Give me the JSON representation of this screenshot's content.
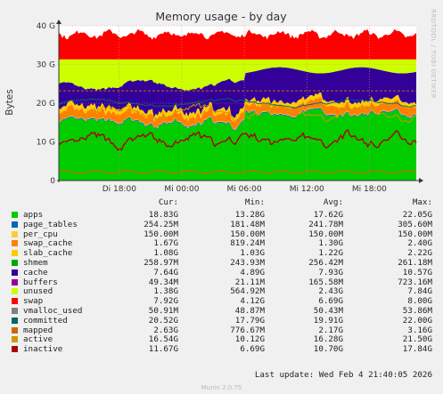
{
  "chart_data": {
    "type": "area",
    "title": "Memory usage - by day",
    "ylabel": "Bytes",
    "watermark": "RRDTOOL / TOBI OETIKER",
    "ylim": [
      0,
      40
    ],
    "yticks": [
      "0",
      "10 G",
      "20 G",
      "30 G",
      "40 G"
    ],
    "xticks": [
      "Di 18:00",
      "Mi 00:00",
      "Mi 06:00",
      "Mi 12:00",
      "Mi 18:00"
    ],
    "x_hours": [
      12,
      18,
      24,
      30,
      36,
      42,
      46.5
    ],
    "xlim_hours": [
      12.2,
      46.5
    ],
    "grid": true,
    "stacked": true,
    "series_colors": {
      "apps": "#00cc00",
      "page_tables": "#0066b3",
      "per_cpu": "#ff8000",
      "swap_cache": "#ffcc00",
      "slab_cache": "#330099",
      "cache": "#990099",
      "buffers": "#ccff00",
      "unused": "#ff0000",
      "vmalloc_used": "#8fb68f",
      "committed": "#1e4d6e",
      "mapped": "#b35a00",
      "active": "#c8a000",
      "inactive": "#b30000"
    },
    "headers": {
      "cur": "Cur:",
      "min": "Min:",
      "avg": "Avg:",
      "max": "Max:"
    },
    "legend": [
      {
        "name": "apps",
        "color": "#00cc00",
        "cur": "18.83G",
        "min": "13.28G",
        "avg": "17.62G",
        "max": "22.05G"
      },
      {
        "name": "page_tables",
        "color": "#0066b3",
        "cur": "254.25M",
        "min": "181.48M",
        "avg": "241.78M",
        "max": "305.60M"
      },
      {
        "name": "per_cpu",
        "color": "#ff8000",
        "cur": "150.00M",
        "min": "150.00M",
        "avg": "150.00M",
        "max": "150.00M"
      },
      {
        "name": "swap_cache",
        "color": "#ffcc00",
        "cur": "1.67G",
        "min": "819.24M",
        "avg": "1.30G",
        "max": "2.40G"
      },
      {
        "name": "slab_cache",
        "color": "#330099",
        "cur": "1.08G",
        "min": "1.03G",
        "avg": "1.22G",
        "max": "2.22G"
      },
      {
        "name": "shmem",
        "color": "#990099",
        "cur": "258.97M",
        "min": "243.93M",
        "avg": "256.42M",
        "max": "261.18M"
      },
      {
        "name": "cache",
        "color": "#ccff00",
        "cur": "7.64G",
        "min": "4.89G",
        "avg": "7.93G",
        "max": "10.57G"
      },
      {
        "name": "buffers",
        "color": "#ff0000",
        "cur": "49.34M",
        "min": "21.11M",
        "avg": "165.58M",
        "max": "723.16M"
      },
      {
        "name": "unused",
        "color": "#808080",
        "cur": "1.38G",
        "min": "564.92M",
        "avg": "2.43G",
        "max": "7.84G"
      },
      {
        "name": "swap",
        "color": "#008f00",
        "cur": "7.92G",
        "min": "4.12G",
        "avg": "6.69G",
        "max": "8.00G"
      },
      {
        "name": "vmalloc_used",
        "color": "#00487d",
        "cur": "50.91M",
        "min": "48.87M",
        "avg": "50.43M",
        "max": "53.86M"
      },
      {
        "name": "committed",
        "color": "#b35a00",
        "cur": "20.52G",
        "min": "17.79G",
        "avg": "19.91G",
        "max": "22.00G"
      },
      {
        "name": "mapped",
        "color": "#b38f00",
        "cur": "2.63G",
        "min": "776.67M",
        "avg": "2.17G",
        "max": "3.16G"
      },
      {
        "name": "active",
        "color": "#6b006b",
        "cur": "16.54G",
        "min": "10.12G",
        "avg": "16.28G",
        "max": "21.50G"
      },
      {
        "name": "inactive",
        "color": "#8fb300",
        "cur": "11.67G",
        "min": "6.69G",
        "avg": "10.70G",
        "max": "17.84G"
      }
    ],
    "legend_swatch_colors": [
      "#00cc00",
      "#0066b3",
      "#ff8000",
      "#ffcc00",
      "#330099",
      "#990099",
      "#ccff00",
      "#ff0000",
      "#808080",
      "#008f00",
      "#00487d",
      "#b35a00",
      "#b38f00",
      "#6b006b",
      "#8fb300"
    ],
    "legend_swatch_colors_actual": [
      "#00cc00",
      "#0066b3",
      "#ffcc33",
      "#ff8000",
      "#ffcc00",
      "#00aa00",
      "#330099",
      "#990099",
      "#ccff00",
      "#ff0000",
      "#808080",
      "#006666",
      "#cc6600",
      "#cc9900",
      "#aa0000"
    ],
    "last_update": "Last update: Wed Feb  4 21:40:05 2026",
    "version": "Munin 2.0.75"
  }
}
